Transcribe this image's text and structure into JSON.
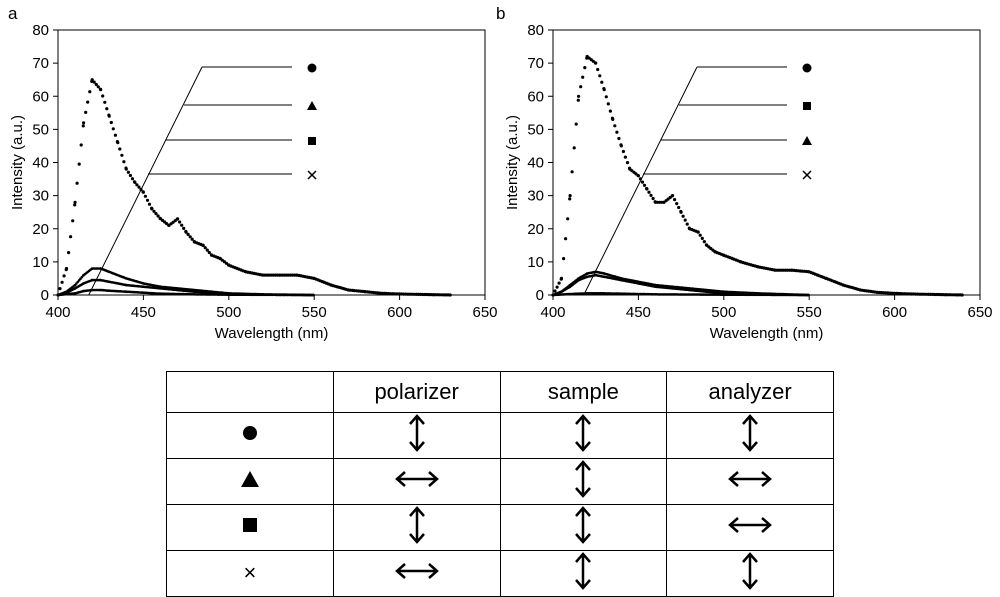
{
  "panel_labels": [
    "a",
    "b"
  ],
  "chart_data": [
    {
      "type": "scatter",
      "panel": "a",
      "title": "",
      "xlabel": "Wavelength (nm)",
      "ylabel": "Intensity (a.u.)",
      "xlim": [
        400,
        650
      ],
      "ylim": [
        0,
        80
      ],
      "xticks": [
        400,
        450,
        500,
        550,
        600,
        650
      ],
      "yticks": [
        0,
        10,
        20,
        30,
        40,
        50,
        60,
        70,
        80
      ],
      "grid": false,
      "legend_symbols": [
        "●",
        "▲",
        "■",
        "×"
      ],
      "series": [
        {
          "name": "●",
          "x": [
            400,
            405,
            410,
            415,
            420,
            425,
            430,
            435,
            440,
            445,
            450,
            455,
            460,
            465,
            470,
            475,
            480,
            485,
            490,
            495,
            500,
            510,
            520,
            530,
            540,
            550,
            560,
            570,
            580,
            590,
            600,
            610,
            620,
            630
          ],
          "y": [
            0,
            8,
            28,
            52,
            65,
            62,
            54,
            46,
            38,
            34,
            31,
            26,
            23,
            21,
            23,
            19,
            16,
            15,
            12,
            11,
            9,
            7,
            6,
            6,
            6,
            5,
            3,
            1.5,
            1,
            0.5,
            0.3,
            0.2,
            0.1,
            0
          ]
        },
        {
          "name": "▲",
          "x": [
            400,
            405,
            410,
            415,
            420,
            425,
            430,
            440,
            450,
            460,
            470,
            480,
            490,
            500,
            520,
            550
          ],
          "y": [
            0,
            1,
            3,
            6,
            8,
            8,
            7,
            5,
            3.5,
            2.5,
            2,
            1.5,
            1,
            0.5,
            0.2,
            0
          ]
        },
        {
          "name": "■",
          "x": [
            400,
            405,
            410,
            415,
            420,
            425,
            430,
            440,
            450,
            460,
            470,
            480,
            490,
            500,
            520,
            550
          ],
          "y": [
            0,
            0.7,
            2,
            3.5,
            4.5,
            4.5,
            4,
            3,
            2.5,
            2,
            1.5,
            1,
            0.6,
            0.4,
            0.1,
            0
          ]
        },
        {
          "name": "×",
          "x": [
            400,
            410,
            415,
            420,
            425,
            430,
            440,
            450,
            460,
            480,
            500,
            550
          ],
          "y": [
            0,
            0.5,
            1.2,
            1.5,
            1.5,
            1.3,
            1,
            0.7,
            0.4,
            0.2,
            0.1,
            0
          ]
        }
      ]
    },
    {
      "type": "scatter",
      "panel": "b",
      "title": "",
      "xlabel": "Wavelength (nm)",
      "ylabel": "Intensity (a.u.)",
      "xlim": [
        400,
        650
      ],
      "ylim": [
        0,
        80
      ],
      "xticks": [
        400,
        450,
        500,
        550,
        600,
        650
      ],
      "yticks": [
        0,
        10,
        20,
        30,
        40,
        50,
        60,
        70,
        80
      ],
      "grid": false,
      "legend_symbols": [
        "●",
        "■",
        "▲",
        "×"
      ],
      "series": [
        {
          "name": "●",
          "x": [
            400,
            405,
            410,
            415,
            420,
            425,
            430,
            435,
            440,
            445,
            450,
            455,
            460,
            465,
            470,
            475,
            480,
            485,
            490,
            495,
            500,
            510,
            520,
            530,
            540,
            550,
            560,
            570,
            580,
            590,
            600,
            610,
            620,
            630,
            640
          ],
          "y": [
            0,
            5,
            30,
            60,
            72,
            70,
            62,
            53,
            45,
            38,
            36,
            32,
            28,
            28,
            30,
            25,
            20,
            19,
            15,
            13,
            12,
            10,
            8.5,
            7.5,
            7.5,
            7,
            5,
            3,
            1.5,
            0.8,
            0.5,
            0.3,
            0.2,
            0.1,
            0
          ]
        },
        {
          "name": "■",
          "x": [
            400,
            405,
            410,
            415,
            420,
            425,
            430,
            440,
            450,
            460,
            470,
            480,
            490,
            500,
            520,
            550
          ],
          "y": [
            0,
            1,
            3,
            5,
            6.5,
            7,
            6.5,
            5,
            4,
            3,
            2.5,
            2,
            1.5,
            1,
            0.5,
            0
          ]
        },
        {
          "name": "▲",
          "x": [
            400,
            405,
            410,
            415,
            420,
            425,
            430,
            440,
            450,
            460,
            470,
            480,
            490,
            500,
            520,
            550
          ],
          "y": [
            0,
            1,
            2.5,
            4.5,
            5.5,
            6,
            5.5,
            4.5,
            3.5,
            2.5,
            2,
            1.5,
            1,
            0.6,
            0.2,
            0
          ]
        },
        {
          "name": "×",
          "x": [
            400,
            410,
            420,
            430,
            440,
            460,
            500,
            550
          ],
          "y": [
            0,
            0.3,
            0.5,
            0.5,
            0.4,
            0.2,
            0.1,
            0
          ]
        }
      ]
    }
  ],
  "table": {
    "headers": [
      "",
      "polarizer",
      "sample",
      "analyzer"
    ],
    "rows": [
      {
        "symbol": "circle",
        "symbol_char": "●",
        "polarizer": "vertical",
        "sample": "vertical",
        "analyzer": "vertical"
      },
      {
        "symbol": "triangle",
        "symbol_char": "▲",
        "polarizer": "horizontal",
        "sample": "vertical",
        "analyzer": "horizontal"
      },
      {
        "symbol": "square",
        "symbol_char": "■",
        "polarizer": "vertical",
        "sample": "vertical",
        "analyzer": "horizontal"
      },
      {
        "symbol": "cross",
        "symbol_char": "×",
        "polarizer": "horizontal",
        "sample": "vertical",
        "analyzer": "vertical"
      }
    ]
  }
}
